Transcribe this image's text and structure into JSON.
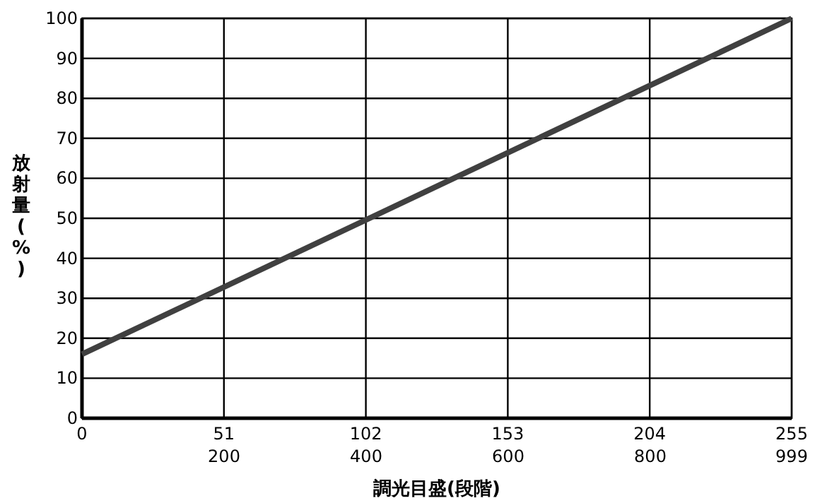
{
  "chart_data": {
    "type": "line",
    "xlabel": "調光目盛(段階)",
    "ylabel": "放射量(%)",
    "x": [
      0,
      255
    ],
    "series": [
      {
        "color": "#404040",
        "values": [
          16,
          100
        ]
      }
    ],
    "xlim": [
      0,
      255
    ],
    "xticks": [
      0,
      51,
      102,
      153,
      204,
      255
    ],
    "x2lim": [
      0,
      999
    ],
    "x2ticks": [
      200,
      400,
      600,
      800,
      999
    ],
    "ylim": [
      0,
      100
    ],
    "yticks": [
      0,
      10,
      20,
      30,
      40,
      50,
      60,
      70,
      80,
      90,
      100
    ],
    "grid": true,
    "marker": "none",
    "line_style": "solid"
  }
}
